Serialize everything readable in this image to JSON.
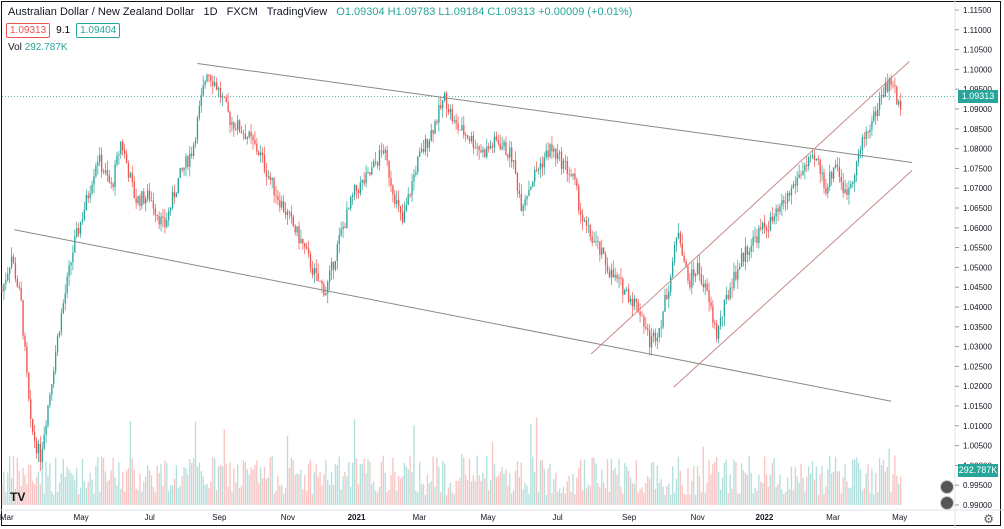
{
  "header": {
    "title": "Australian Dollar / New Zealand Dollar",
    "interval": "1D",
    "exchange": "FXCM",
    "source": "TradingView",
    "ohlc": "O1.09304 H1.09783 L1.09184 C1.09313 +0.00009 (+0.01%)"
  },
  "quote": {
    "sell": "1.09313",
    "spread": "9.1",
    "buy": "1.09404"
  },
  "volume": {
    "label": "Vol",
    "value": "292.787K"
  },
  "logo": "TV",
  "colors": {
    "up": "#26a69a",
    "down": "#ef5350",
    "line": "#888888",
    "channel": "#c98a8a"
  },
  "chart_data": {
    "type": "candlestick",
    "last_price": "1.09313",
    "ylim": [
      0.99,
      1.115
    ],
    "y_ticks": [
      "1.11500",
      "1.11000",
      "1.10500",
      "1.10000",
      "1.09500",
      "1.09000",
      "1.08500",
      "1.08000",
      "1.07500",
      "1.07000",
      "1.06500",
      "1.06000",
      "1.05500",
      "1.05000",
      "1.04500",
      "1.04000",
      "1.03500",
      "1.03000",
      "1.02500",
      "1.02000",
      "1.01500",
      "1.01000",
      "1.00500",
      "1.00000",
      "0.99500",
      "0.99000"
    ],
    "x_ticks": [
      "Mar",
      "May",
      "Jul",
      "Sep",
      "Nov",
      "2021",
      "Mar",
      "May",
      "Jul",
      "Sep",
      "Nov",
      "2022",
      "Mar",
      "May"
    ],
    "price_path": [
      [
        0,
        1.044
      ],
      [
        0.01,
        1.053
      ],
      [
        0.02,
        1.041
      ],
      [
        0.03,
        1.01
      ],
      [
        0.04,
        1.002
      ],
      [
        0.05,
        1.018
      ],
      [
        0.06,
        1.035
      ],
      [
        0.075,
        1.055
      ],
      [
        0.09,
        1.068
      ],
      [
        0.1,
        1.078
      ],
      [
        0.115,
        1.07
      ],
      [
        0.125,
        1.082
      ],
      [
        0.14,
        1.067
      ],
      [
        0.155,
        1.068
      ],
      [
        0.17,
        1.06
      ],
      [
        0.185,
        1.072
      ],
      [
        0.2,
        1.08
      ],
      [
        0.215,
        1.1
      ],
      [
        0.225,
        1.096
      ],
      [
        0.24,
        1.087
      ],
      [
        0.255,
        1.084
      ],
      [
        0.27,
        1.079
      ],
      [
        0.285,
        1.07
      ],
      [
        0.3,
        1.063
      ],
      [
        0.315,
        1.056
      ],
      [
        0.33,
        1.047
      ],
      [
        0.34,
        1.044
      ],
      [
        0.355,
        1.058
      ],
      [
        0.37,
        1.069
      ],
      [
        0.385,
        1.073
      ],
      [
        0.4,
        1.08
      ],
      [
        0.41,
        1.07
      ],
      [
        0.42,
        1.061
      ],
      [
        0.435,
        1.076
      ],
      [
        0.45,
        1.084
      ],
      [
        0.465,
        1.093
      ],
      [
        0.475,
        1.086
      ],
      [
        0.49,
        1.083
      ],
      [
        0.505,
        1.079
      ],
      [
        0.52,
        1.082
      ],
      [
        0.535,
        1.078
      ],
      [
        0.545,
        1.066
      ],
      [
        0.56,
        1.074
      ],
      [
        0.575,
        1.08
      ],
      [
        0.59,
        1.076
      ],
      [
        0.6,
        1.072
      ],
      [
        0.61,
        1.061
      ],
      [
        0.625,
        1.055
      ],
      [
        0.64,
        1.048
      ],
      [
        0.655,
        1.044
      ],
      [
        0.67,
        1.039
      ],
      [
        0.68,
        1.031
      ],
      [
        0.69,
        1.035
      ],
      [
        0.7,
        1.046
      ],
      [
        0.71,
        1.06
      ],
      [
        0.72,
        1.046
      ],
      [
        0.73,
        1.05
      ],
      [
        0.74,
        1.043
      ],
      [
        0.75,
        1.033
      ],
      [
        0.765,
        1.046
      ],
      [
        0.78,
        1.054
      ],
      [
        0.795,
        1.059
      ],
      [
        0.81,
        1.062
      ],
      [
        0.825,
        1.068
      ],
      [
        0.84,
        1.075
      ],
      [
        0.855,
        1.077
      ],
      [
        0.865,
        1.07
      ],
      [
        0.875,
        1.077
      ],
      [
        0.885,
        1.068
      ],
      [
        0.895,
        1.075
      ],
      [
        0.905,
        1.083
      ],
      [
        0.915,
        1.088
      ],
      [
        0.925,
        1.095
      ],
      [
        0.935,
        1.097
      ],
      [
        0.94,
        1.09
      ],
      [
        0.945,
        1.093
      ]
    ],
    "trendlines": [
      {
        "name": "upper-trend",
        "from": [
          0.205,
          1.1015
        ],
        "to": [
          0.955,
          1.0765
        ],
        "color": "gray"
      },
      {
        "name": "lower-trend",
        "from": [
          0.013,
          1.0595
        ],
        "to": [
          0.933,
          1.0162
        ],
        "color": "gray"
      },
      {
        "name": "channel-top",
        "from": [
          0.618,
          1.0281
        ],
        "to": [
          0.952,
          1.102
        ],
        "color": "brown"
      },
      {
        "name": "channel-bottom",
        "from": [
          0.705,
          1.0198
        ],
        "to": [
          0.955,
          1.0745
        ],
        "color": "brown"
      }
    ],
    "current_price_line": 1.09313
  }
}
